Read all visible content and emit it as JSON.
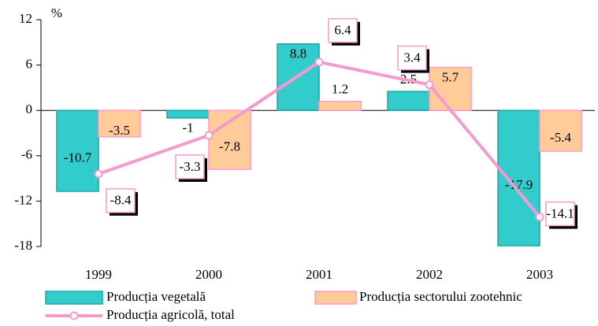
{
  "chart_data": {
    "type": "bar",
    "y_label": "%",
    "categories": [
      "1999",
      "2000",
      "2001",
      "2002",
      "2003"
    ],
    "series": [
      {
        "name": "Producția  vegetală",
        "type": "bar",
        "color": "#33cccc",
        "values": [
          -10.7,
          -1.0,
          8.8,
          2.5,
          -17.9
        ]
      },
      {
        "name": "Producția  sectorului zootehnic",
        "type": "bar",
        "color": "#ffcc99",
        "values": [
          -3.5,
          -7.8,
          1.2,
          5.7,
          -5.4
        ]
      },
      {
        "name": "Producția agricolă, total",
        "type": "line",
        "color": "#f49ad0",
        "values": [
          -8.4,
          -3.3,
          6.4,
          3.4,
          -14.1
        ]
      }
    ],
    "ylim": [
      -18,
      12
    ],
    "yticks": [
      -18,
      -12,
      -6,
      0,
      6,
      12
    ],
    "grid": false,
    "legend": "bottom"
  }
}
